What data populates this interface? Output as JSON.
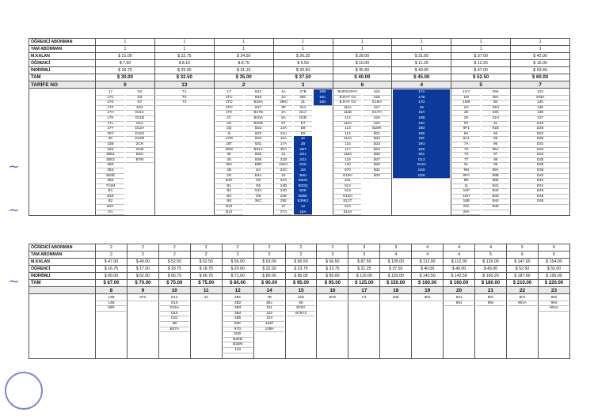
{
  "tables": [
    {
      "row_labels": [
        "ÖĞRENCİ ABONMAN",
        "TAM ABONMAN",
        "M.KALAN",
        "ÖĞRENCİ",
        "İNDİRİMLİ",
        "TAM",
        "TARİFE NO"
      ],
      "columns": [
        {
          "tariff": "0",
          "values": [
            "1",
            "1",
            "$ 21.00",
            "$ 7.50",
            "$ 26.70",
            "$ 30.00"
          ],
          "routes": [
            "17",
            "17C",
            "17E",
            "17F",
            "17H",
            "17K",
            "17L",
            "17Y",
            "20Y",
            "2K",
            "33B",
            "33S",
            "35E1",
            "35E2",
            "35R",
            "35S",
            "35SE",
            "35Z",
            "741M",
            "B1",
            "B18",
            "B2",
            "B2A",
            "D1",
            "D2",
            "D3",
            "D7",
            "D11",
            "D11A",
            "D11B",
            "D12",
            "D12A",
            "D12H",
            "D12R",
            "2CH",
            "2GM",
            "B2G",
            "BTM"
          ]
        },
        {
          "tariff": "13",
          "values": [
            "1",
            "1",
            "$ 22.75",
            "$ 8.10",
            "$ 29.00",
            "$ 32.50"
          ],
          "routes": [
            "T1",
            "T2",
            "T3"
          ]
        },
        {
          "tariff": "2",
          "values": [
            "1",
            "1",
            "$ 24.50",
            "$ 8.75",
            "$ 31.15",
            "$ 35.00"
          ],
          "routes": [
            "1T",
            "1TC",
            "1TD",
            "1TH",
            "1TK",
            "2C",
            "3G",
            "3Q",
            "4I",
            "17M",
            "18T",
            "35M",
            "3K",
            "3S",
            "36A",
            "2B",
            "2D",
            "B1K",
            "B1",
            "B2",
            "B3",
            "B8",
            "B10",
            "B12",
            "B13",
            "B15",
            "B16A",
            "B17",
            "B17B",
            "B20A",
            "B20B",
            "B22",
            "B23",
            "B24",
            "B31",
            "B31A",
            "B32",
            "B36",
            "B3R",
            "D4",
            "D4A",
            "D5",
            "D6",
            "G4A",
            "G8",
            "2KC"
          ]
        },
        {
          "tariff": "3",
          "values": [
            "1",
            "1",
            "$ 26.25",
            "$ 9.50",
            "$ 33.50",
            "$ 37.50"
          ],
          "routes": [
            "1A",
            "1C",
            "3MU",
            "3P",
            "4A",
            "5A",
            "5T",
            "14A",
            "14U",
            "15A",
            "17A",
            "20A",
            "21",
            "21B",
            "21DA",
            "22C",
            "23",
            "24A",
            "24B",
            "24D",
            "24E",
            "25E",
            "27",
            "27A",
            "27B",
            "28C",
            "31",
            "31A",
            "D1A",
            "D1B",
            "D7",
            "D8",
            "D9",
            "1K",
            "2B",
            "2BT",
            "2G1",
            "2G2",
            "2GK",
            "2M",
            "3MU",
            "B20G",
            "B20Q",
            "B2K",
            "B35K",
            "B35K2",
            "12",
            "15A",
            "15B",
            "15C",
            "15D"
          ]
        },
        {
          "tariff": "6",
          "values": [
            "1",
            "1",
            "$ 28.00",
            "$ 10.00",
            "$ 35.60",
            "$ 40.00"
          ],
          "routes": [
            "BURSARAY",
            "B.RAY G1",
            "B.RAY G2",
            "111A",
            "111B",
            "112",
            "112A",
            "113",
            "114",
            "114A",
            "115",
            "117",
            "118A",
            "119",
            "120",
            "670",
            "E10H",
            "611",
            "612",
            "613",
            "E12H",
            "E12T",
            "614",
            "614A",
            "615",
            "616",
            "E16H",
            "617",
            "E17H",
            "618",
            "619",
            "B20K",
            "B21",
            "B22",
            "B23",
            "B24",
            "B26",
            "B27",
            "B28",
            "B31",
            "B34"
          ]
        },
        {
          "tariff": "4",
          "values": [
            "1",
            "1",
            "$ 31.50",
            "$ 11.25",
            "$ 40.00",
            "$ 45.00"
          ],
          "routes": [
            "17A",
            "17B",
            "17D",
            "18",
            "19A",
            "19B",
            "19C",
            "19D",
            "19E",
            "19F",
            "19G",
            "630",
            "631",
            "D13",
            "D13A",
            "D20",
            "D26"
          ]
        },
        {
          "tariff": "5",
          "values": [
            "1",
            "1",
            "$ 37.00",
            "$ 12.25",
            "$ 47.00",
            "$ 52.50"
          ],
          "routes": [
            "1GY",
            "1M",
            "1M8",
            "1G",
            "2E",
            "2K",
            "6F",
            "6F1",
            "6K",
            "6A1",
            "7A",
            "7E",
            "7S",
            "7T",
            "9L",
            "9M",
            "9PA",
            "9R",
            "11",
            "14P",
            "15H",
            "16B",
            "23A",
            "25A",
            "25K",
            "26A",
            "3E",
            "33H",
            "33K",
            "41H",
            "91",
            "91B",
            "93",
            "95",
            "96",
            "96A",
            "97",
            "98",
            "99",
            "99A",
            "99B",
            "99E",
            "B41",
            "B42",
            "B43",
            "B44",
            "B45"
          ]
        },
        {
          "tariff": "7",
          "values": [
            "1",
            "1",
            "$ 42.00",
            "$ 15.00",
            "$ 53.40",
            "$ 60.00"
          ],
          "routes": [
            "103",
            "103A",
            "135",
            "136",
            "138",
            "13Y",
            "D15",
            "D20",
            "D22",
            "D25",
            "D31",
            "D33",
            "D34",
            "D35",
            "D36",
            "D38",
            "D40",
            "D42",
            "D44",
            "D45",
            "D46",
            "D48"
          ]
        }
      ]
    },
    {
      "row_labels": [
        "ÖĞRENCİ ABONMAN",
        "TAM ABONMAN",
        "M.KALAN",
        "ÖĞRENCİ",
        "İNDİRİMLİ",
        "TAM"
      ],
      "columns": [
        {
          "tariff": "8",
          "values": [
            "2",
            "2",
            "$ 47.00",
            "$ 16.75",
            "$ 60.00",
            "$ 67.00"
          ],
          "routes": [
            "13B",
            "14B",
            "50R"
          ]
        },
        {
          "tariff": "9",
          "values": [
            "2",
            "2",
            "$ 49.00",
            "$ 17.50",
            "$ 62.50",
            "$ 70.00"
          ],
          "routes": [
            "6T2"
          ]
        },
        {
          "tariff": "10",
          "values": [
            "2",
            "2",
            "$ 52.50",
            "$ 18.75",
            "$ 66.75",
            "$ 75.00"
          ],
          "routes": [
            "D14",
            "D15",
            "D15A",
            "D16",
            "D22",
            "3B",
            "B37A"
          ]
        },
        {
          "tariff": "11",
          "values": [
            "2",
            "2",
            "$ 52.50",
            "$ 18.75",
            "$ 66.75",
            "$ 75.00"
          ],
          "routes": [
            "44"
          ]
        },
        {
          "tariff": "12",
          "values": [
            "2",
            "2",
            "$ 56.00",
            "$ 20.00",
            "$ 71.00",
            "$ 80.00"
          ],
          "routes": [
            "3B1",
            "3B2",
            "3B3",
            "3B4",
            "3B5",
            "60K",
            "97G",
            "B30",
            "B30D",
            "B33M",
            "134"
          ]
        },
        {
          "tariff": "14",
          "values": [
            "2",
            "2",
            "$ 63.00",
            "$ 22.50",
            "$ 80.00",
            "$ 90.00"
          ],
          "routes": [
            "7B",
            "3B1",
            "101",
            "102",
            "104",
            "134F",
            "139H"
          ]
        },
        {
          "tariff": "15",
          "values": [
            "2",
            "2",
            "$ 66.50",
            "$ 23.75",
            "$ 85.00",
            "$ 95.00"
          ],
          "routes": [
            "16G",
            "56",
            "B76Y",
            "B76Y2"
          ]
        },
        {
          "tariff": "16",
          "values": [
            "2",
            "3",
            "$ 66.50",
            "$ 23.75",
            "$ 85.00",
            "$ 95.00"
          ],
          "routes": [
            "B7S"
          ]
        },
        {
          "tariff": "17",
          "values": [
            "3",
            "3",
            "$ 87.50",
            "$ 31.25",
            "$ 110.00",
            "$ 125.00"
          ],
          "routes": [
            "F3"
          ]
        },
        {
          "tariff": "18",
          "values": [
            "3",
            "4",
            "$ 105.00",
            "$ 37.50",
            "$ 133.00",
            "$ 150.00"
          ],
          "routes": [
            "608"
          ]
        },
        {
          "tariff": "19",
          "values": [
            "4",
            "4",
            "$ 112.00",
            "$ 40.00",
            "$ 142.50",
            "$ 160.00"
          ],
          "routes": [
            "801"
          ]
        },
        {
          "tariff": "20",
          "values": [
            "4",
            "4",
            "$ 112.00",
            "$ 40.00",
            "$ 142.50",
            "$ 160.00"
          ],
          "routes": [
            "921",
            "981"
          ]
        },
        {
          "tariff": "21",
          "values": [
            "4",
            "5",
            "$ 126.00",
            "$ 45.00",
            "$ 160.20",
            "$ 180.00"
          ],
          "routes": [
            "991",
            "992"
          ]
        },
        {
          "tariff": "22",
          "values": [
            "5",
            "6",
            "$ 147.00",
            "$ 52.50",
            "$ 187.00",
            "$ 210.00"
          ],
          "routes": [
            "901",
            "901A"
          ]
        },
        {
          "tariff": "23",
          "values": [
            "6",
            "6",
            "$ 154.00",
            "$ 55.00",
            "$ 195.00",
            "$ 220.00"
          ],
          "routes": [
            "902",
            "904",
            "904A"
          ]
        }
      ]
    }
  ]
}
